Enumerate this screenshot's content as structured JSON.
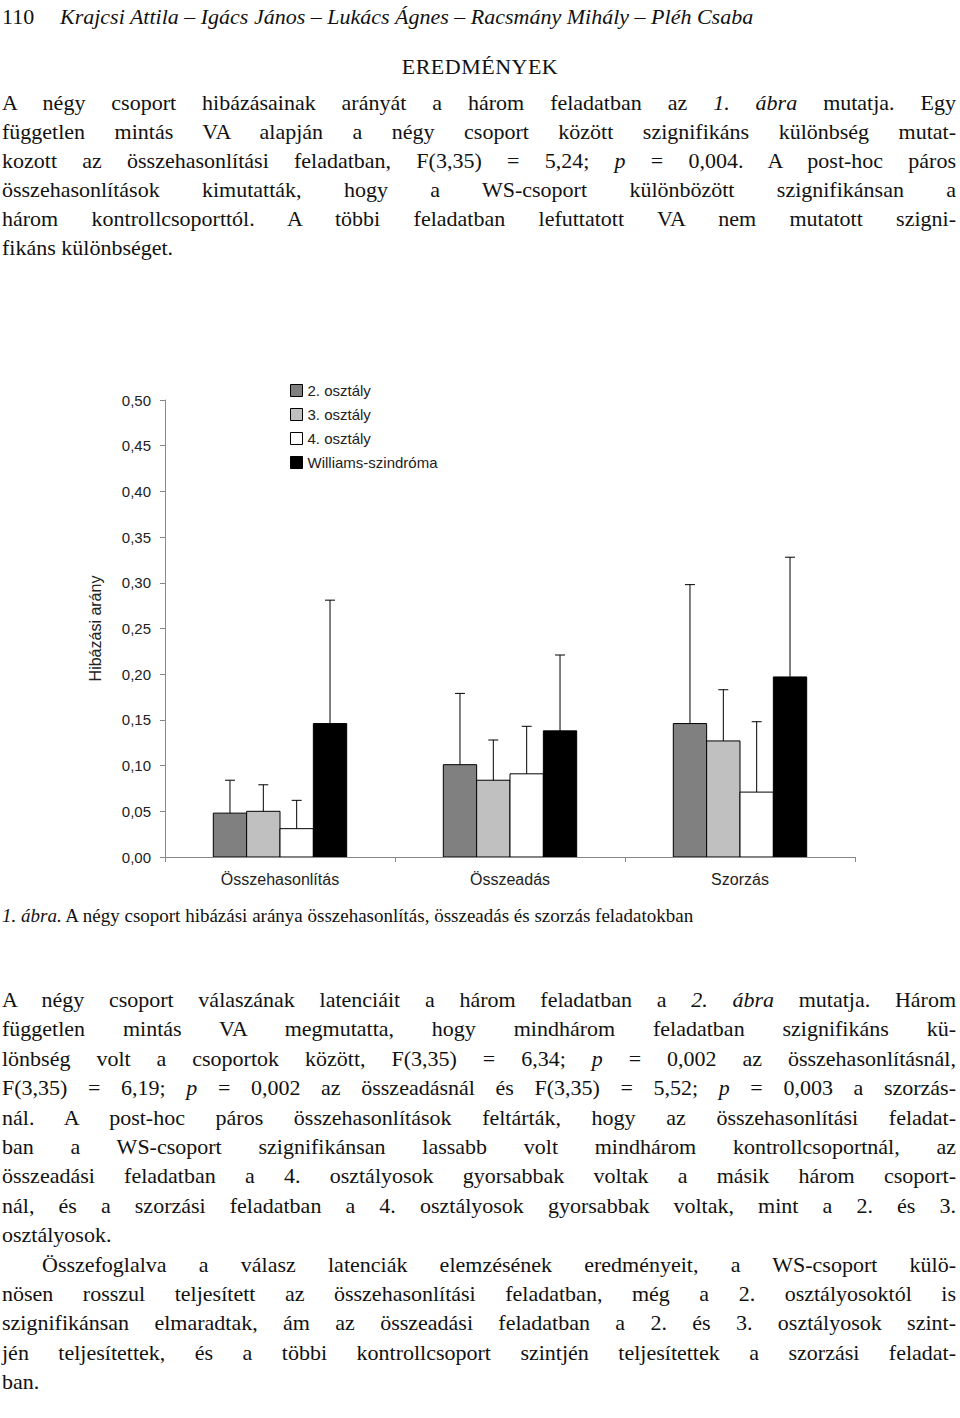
{
  "header": {
    "page_number": "110",
    "authors": "Krajcsi Attila – Igács János – Lukács Ágnes – Racsmány Mihály – Pléh Csaba"
  },
  "section_title": "EREDMÉNYEK",
  "paragraphs_before": [
    [
      [
        "A négy csoport hibázásainak arányát a három feladatban az ",
        {
          "text": "1. ábra",
          "italic": true
        },
        " mutatja. Egy"
      ],
      [
        "független mintás VA alapján a négy csoport között szignifikáns különbség mutat-"
      ],
      [
        "kozott az összehasonlítási feladatban, F(3,35) = 5,24; ",
        {
          "text": "p",
          "italic": true
        },
        " = 0,004. A post-hoc páros"
      ],
      [
        "összehasonlítások kimutatták, hogy a WS-csoport különbözött szignifikánsan a"
      ],
      [
        "három kontrollcsoporttól. A többi feladatban lefuttatott VA nem mutatott szigni-"
      ],
      [
        "fikáns különbséget."
      ]
    ]
  ],
  "chart_data": {
    "type": "bar",
    "y_label": "Hibázási arány",
    "categories": [
      "Összehasonlítás",
      "Összeadás",
      "Szorzás"
    ],
    "series": [
      {
        "name": "2. osztály",
        "color": "#808080",
        "values": [
          0.048,
          0.101,
          0.146
        ],
        "errors": [
          0.036,
          0.078,
          0.152
        ]
      },
      {
        "name": "3. osztály",
        "color": "#c0c0c0",
        "values": [
          0.05,
          0.084,
          0.127
        ],
        "errors": [
          0.029,
          0.044,
          0.056
        ]
      },
      {
        "name": "4. osztály",
        "color": "#ffffff",
        "values": [
          0.031,
          0.091,
          0.071
        ],
        "errors": [
          0.031,
          0.052,
          0.077
        ]
      },
      {
        "name": "Williams-szindróma",
        "color": "#000000",
        "values": [
          0.146,
          0.138,
          0.197
        ],
        "errors": [
          0.135,
          0.083,
          0.131
        ]
      }
    ],
    "ylim": [
      0,
      0.5
    ],
    "yticks": [
      {
        "value": 0,
        "label": "0,00"
      },
      {
        "value": 0.05,
        "label": "0,05"
      },
      {
        "value": 0.1,
        "label": "0,10"
      },
      {
        "value": 0.15,
        "label": "0,15"
      },
      {
        "value": 0.2,
        "label": "0,20"
      },
      {
        "value": 0.25,
        "label": "0,25"
      },
      {
        "value": 0.3,
        "label": "0,30"
      },
      {
        "value": 0.35,
        "label": "0,35"
      },
      {
        "value": 0.4,
        "label": "0,40"
      },
      {
        "value": 0.45,
        "label": "0,45"
      },
      {
        "value": 0.5,
        "label": "0,50"
      }
    ],
    "grid": false,
    "legend": "top-left"
  },
  "caption": {
    "label": "1. ábra.",
    "text": " A négy csoport hibázási aránya összehasonlítás, összeadás és szorzás feladatokban"
  },
  "paragraphs_after": [
    [
      [
        "A négy csoport válaszának latenciáit a három feladatban a ",
        {
          "text": "2. ábra",
          "italic": true
        },
        " mutatja. Három"
      ],
      [
        "független mintás VA megmutatta, hogy mindhárom feladatban szignifikáns kü-"
      ],
      [
        "lönbség volt a csoportok között, F(3,35) = 6,34; ",
        {
          "text": "p",
          "italic": true
        },
        " = 0,002 az összehasonlításnál,"
      ],
      [
        "F(3,35) = 6,19; ",
        {
          "text": "p",
          "italic": true
        },
        " = 0,002 az összeadásnál és F(3,35) = 5,52; ",
        {
          "text": "p",
          "italic": true
        },
        " = 0,003 a szorzás-"
      ],
      [
        "nál. A post-hoc páros összehasonlítások feltárták, hogy az összehasonlítási feladat-"
      ],
      [
        "ban a WS-csoport szignifikánsan lassabb volt mindhárom kontrollcsoportnál, az"
      ],
      [
        "összeadási feladatban a 4. osztályosok gyorsabbak voltak a másik három csoport-"
      ],
      [
        "nál, és a szorzási feladatban a 4. osztályosok gyorsabbak voltak, mint a 2. és 3."
      ],
      [
        "osztályosok."
      ]
    ],
    [
      [
        "Összefoglalva a válasz latenciák elemzésének eredményeit, a WS-csoport külö-"
      ],
      [
        "nösen rosszul teljesített az összehasonlítási feladatban, még a 2. osztályosoktól is"
      ],
      [
        "szignifikánsan elmaradtak, ám az összeadási feladatban a 2. és 3. osztályosok szint-"
      ],
      [
        "jén teljesítettek, és a többi kontrollcsoport szintjén teljesítettek a szorzási feladat-"
      ],
      [
        "ban."
      ]
    ]
  ]
}
